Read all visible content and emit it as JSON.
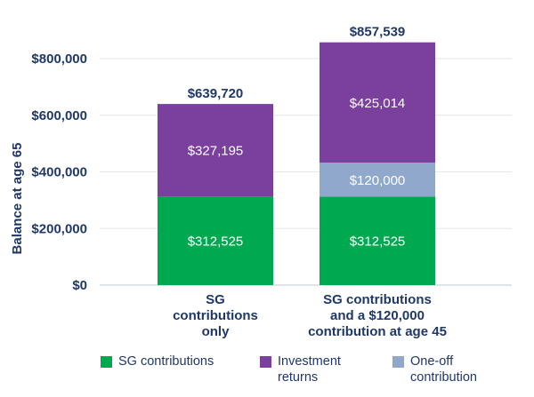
{
  "chart_data": {
    "type": "bar",
    "stacked": true,
    "ylabel": "Balance at age 65",
    "ylim": [
      0,
      800000
    ],
    "yticks": [
      0,
      200000,
      400000,
      600000,
      800000
    ],
    "ytick_labels": [
      "$0",
      "$200,000",
      "$400,000",
      "$600,000",
      "$800,000"
    ],
    "categories": [
      [
        "SG",
        "contributions",
        "only"
      ],
      [
        "SG contributions",
        "and a $120,000",
        "contribution at age 45"
      ]
    ],
    "series": [
      {
        "name": "SG contributions",
        "color": "#00a84f",
        "values": [
          312525,
          312525
        ],
        "labels": [
          "$312,525",
          "$312,525"
        ]
      },
      {
        "name": "One-off contribution",
        "color": "#8fa8cc",
        "values": [
          0,
          120000
        ],
        "labels": [
          "",
          "$120,000"
        ]
      },
      {
        "name": "Investment returns",
        "color": "#7b3f9e",
        "values": [
          327195,
          425014
        ],
        "labels": [
          "$327,195",
          "$425,014"
        ]
      }
    ],
    "totals": [
      "$639,720",
      "$857,539"
    ],
    "legend": [
      {
        "name": "SG contributions",
        "color": "#00a84f",
        "lines": [
          "SG contributions"
        ]
      },
      {
        "name": "Investment returns",
        "color": "#7b3f9e",
        "lines": [
          "Investment",
          "returns"
        ]
      },
      {
        "name": "One-off contribution",
        "color": "#8fa8cc",
        "lines": [
          "One-off",
          "contribution"
        ]
      }
    ]
  }
}
